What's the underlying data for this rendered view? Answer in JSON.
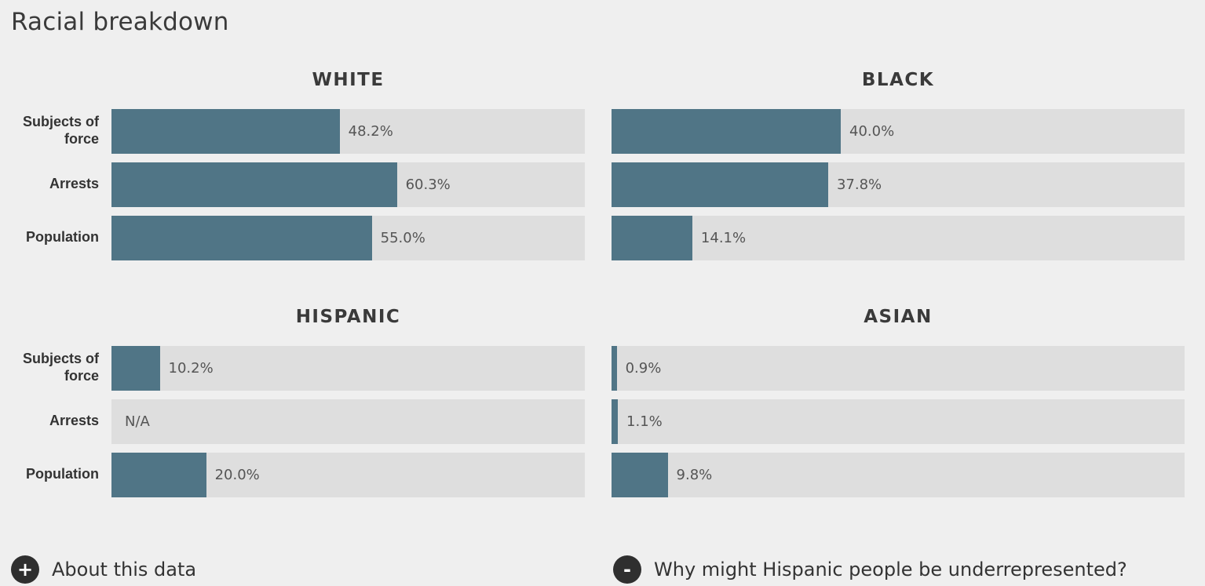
{
  "title": "Racial breakdown",
  "chart_data": {
    "type": "bar",
    "orientation": "horizontal",
    "value_max": 100,
    "categories": [
      "Subjects of force",
      "Arrests",
      "Population"
    ],
    "category_labels": [
      [
        "Subjects of",
        "force"
      ],
      [
        "Arrests"
      ],
      [
        "Population"
      ]
    ],
    "panels": [
      {
        "title": "WHITE",
        "values": [
          48.2,
          60.3,
          55.0
        ],
        "display": [
          "48.2%",
          "60.3%",
          "55.0%"
        ]
      },
      {
        "title": "BLACK",
        "values": [
          40.0,
          37.8,
          14.1
        ],
        "display": [
          "40.0%",
          "37.8%",
          "14.1%"
        ]
      },
      {
        "title": "HISPANIC",
        "values": [
          10.2,
          null,
          20.0
        ],
        "display": [
          "10.2%",
          "N/A",
          "20.0%"
        ]
      },
      {
        "title": "ASIAN",
        "values": [
          0.9,
          1.1,
          9.8
        ],
        "display": [
          "0.9%",
          "1.1%",
          "9.8%"
        ]
      }
    ]
  },
  "footer": {
    "about": {
      "icon": "plus-icon",
      "symbol": "+",
      "label": "About this data"
    },
    "why": {
      "icon": "minus-icon",
      "symbol": "-",
      "label": "Why might Hispanic people be underrepresented?"
    }
  },
  "colors": {
    "bar_fill": "#507586",
    "bar_track": "#dedede",
    "background": "#efefef"
  }
}
